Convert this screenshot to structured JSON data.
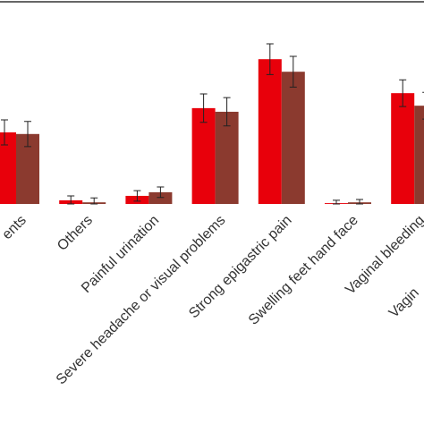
{
  "chart_data": {
    "type": "bar",
    "categories": [
      "ents",
      "Others",
      "Painful urination",
      "Severe headache or visual problems",
      "Strong epigastric pain",
      "Swelling feet hand face",
      "Vaginal bleeding",
      "Vagin"
    ],
    "series": [
      {
        "color": "#e8000b",
        "values": [
          17.7,
          0.9,
          2.0,
          23.7,
          35.8,
          0.2,
          27.4,
          null
        ],
        "errors": [
          3.1,
          1.1,
          1.3,
          3.5,
          3.8,
          0.7,
          3.3,
          null
        ]
      },
      {
        "color": "#8b3a2f",
        "values": [
          17.3,
          0.4,
          2.9,
          22.8,
          32.7,
          0.4,
          24.3,
          null
        ],
        "errors": [
          3.1,
          1.1,
          1.3,
          3.5,
          3.8,
          0.7,
          3.3,
          null
        ]
      }
    ],
    "ylim": [
      0,
      50
    ]
  }
}
